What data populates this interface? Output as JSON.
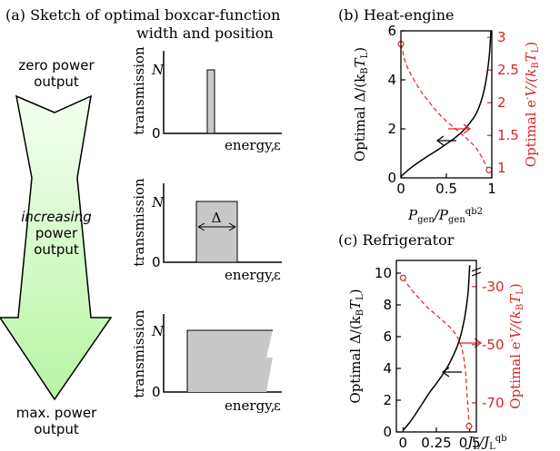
{
  "panel_a": {
    "title_line1": "(a) Sketch of optimal boxcar-function",
    "title_line2": "width and position",
    "arrow_label_top_1": "zero power",
    "arrow_label_top_2": "output",
    "arrow_label_mid_1": "increasing",
    "arrow_label_mid_2": "power",
    "arrow_label_mid_3": "output",
    "arrow_label_bot_1": "max. power",
    "arrow_label_bot_2": "output",
    "sketch_ylabel": "transmission",
    "sketch_xlabel": "energy,",
    "sketch_xsymbol": "ε",
    "sketch_N": "N",
    "sketch_zero": "0",
    "delta_label": "Δ"
  },
  "chart_data": [
    {
      "type": "line",
      "title": "(b) Heat-engine",
      "xlabel_main": "P",
      "xlabel_sub": "gen",
      "xlabel_sep": "/P",
      "xlabel_sub2": "gen",
      "xlabel_sup2": "qb2",
      "ylabel_left": "Optimal Δ/(k",
      "ylabel_left_sub": "B",
      "ylabel_left_end": "T",
      "ylabel_left_endsub": "L",
      "ylabel_left_close": ")",
      "ylabel_right": "Optimal e",
      "ylabel_right_sup": "-",
      "ylabel_right_mid": "V/(k",
      "ylabel_right_sub": "B",
      "ylabel_right_end": "T",
      "ylabel_right_endsub": "L",
      "ylabel_right_close": ")",
      "xlim": [
        0,
        1
      ],
      "ylim_left": [
        0,
        6
      ],
      "ylim_right": [
        0.85,
        3.1
      ],
      "xticks": [
        "0",
        "0.5",
        "1"
      ],
      "yticks_left": [
        "0",
        "2",
        "4",
        "6"
      ],
      "yticks_right": [
        "1",
        "1.5",
        "2",
        "2.5",
        "3"
      ],
      "series": [
        {
          "axis": "left",
          "color": "#000000",
          "style": "solid",
          "x": [
            0,
            0.05,
            0.1,
            0.2,
            0.3,
            0.4,
            0.5,
            0.6,
            0.7,
            0.8,
            0.85,
            0.9,
            0.93,
            0.95,
            0.97,
            0.98,
            0.99
          ],
          "y": [
            0.05,
            0.22,
            0.38,
            0.65,
            0.9,
            1.13,
            1.38,
            1.65,
            1.98,
            2.45,
            2.8,
            3.35,
            3.85,
            4.3,
            4.9,
            5.35,
            6.0
          ]
        },
        {
          "axis": "right",
          "color": "#d62728",
          "style": "dashed",
          "x": [
            0,
            0.02,
            0.05,
            0.1,
            0.2,
            0.3,
            0.4,
            0.5,
            0.6,
            0.7,
            0.8,
            0.85,
            0.9,
            0.93,
            0.95,
            0.97
          ],
          "y": [
            2.9,
            2.78,
            2.62,
            2.46,
            2.22,
            2.03,
            1.86,
            1.72,
            1.6,
            1.48,
            1.35,
            1.26,
            1.14,
            1.05,
            1.0,
            0.97
          ]
        }
      ]
    },
    {
      "type": "line",
      "title": "(c) Refrigerator",
      "xlabel_main": "J",
      "xlabel_sub": "L",
      "xlabel_sep": "/J",
      "xlabel_sub2": "L",
      "xlabel_sup2": "qb",
      "ylabel_left": "Optimal Δ/(k",
      "ylabel_left_sub": "B",
      "ylabel_left_end": "T",
      "ylabel_left_endsub": "L",
      "ylabel_left_close": ")",
      "ylabel_right": "Optimal e",
      "ylabel_right_sup": "-",
      "ylabel_right_mid": "V/(k",
      "ylabel_right_sub": "B",
      "ylabel_right_end": "T",
      "ylabel_right_endsub": "L",
      "ylabel_right_close": ")",
      "xlim": [
        -0.05,
        0.55
      ],
      "ylim_left": [
        0,
        10.8
      ],
      "ylim_right": [
        -80,
        -21
      ],
      "xticks": [
        "0",
        "0.25",
        "0.5"
      ],
      "yticks_left": [
        "0",
        "2",
        "4",
        "6",
        "8",
        "10"
      ],
      "yticks_right": [
        "-30",
        "-50",
        "-70"
      ],
      "series": [
        {
          "axis": "left",
          "color": "#000000",
          "style": "solid",
          "x": [
            0,
            0.05,
            0.1,
            0.15,
            0.2,
            0.25,
            0.3,
            0.35,
            0.4,
            0.43,
            0.46,
            0.48,
            0.49,
            0.5
          ],
          "y": [
            0.1,
            0.6,
            1.2,
            1.85,
            2.5,
            3.05,
            3.65,
            4.35,
            5.25,
            6.0,
            7.1,
            8.2,
            9.0,
            10.5
          ]
        },
        {
          "axis": "right",
          "color": "#d62728",
          "style": "dashed",
          "x": [
            0,
            0.03,
            0.08,
            0.13,
            0.18,
            0.23,
            0.28,
            0.33,
            0.38,
            0.42,
            0.45,
            0.47,
            0.48,
            0.49,
            0.495
          ],
          "y": [
            -27,
            -29,
            -32,
            -34.5,
            -37,
            -39,
            -41,
            -43,
            -45.5,
            -48.5,
            -53,
            -60,
            -67,
            -73,
            -78
          ]
        }
      ]
    }
  ]
}
